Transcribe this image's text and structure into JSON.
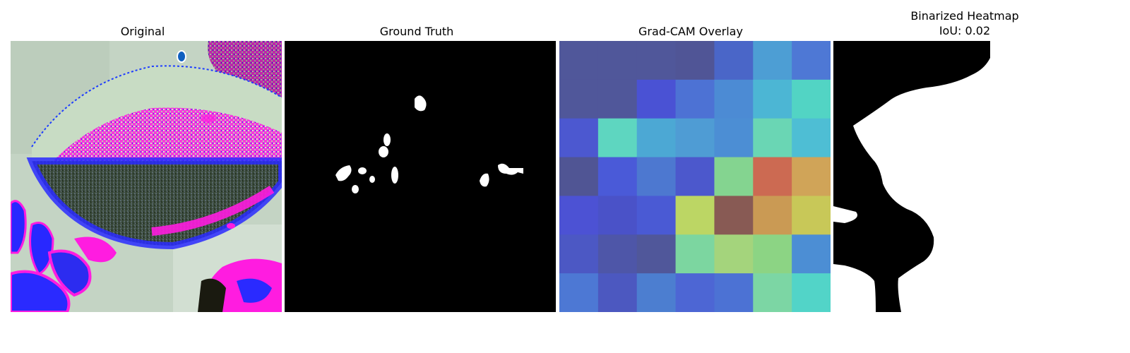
{
  "panels": [
    {
      "title": "Original"
    },
    {
      "title": "Ground Truth"
    },
    {
      "title": "Grad-CAM Overlay"
    },
    {
      "title": "Binarized Heatmap\nIoU: 0.02"
    }
  ],
  "gradcam": {
    "rows": 7,
    "cols": 7,
    "colors": [
      [
        "#50579a",
        "#50579a",
        "#50579a",
        "#505596",
        "#4a66c8",
        "#4d9ed4",
        "#4e78d5"
      ],
      [
        "#50579a",
        "#50579a",
        "#4a52d4",
        "#4d72d4",
        "#4c8bd4",
        "#4cb6d4",
        "#52d4c4"
      ],
      [
        "#4c58d0",
        "#5ed6c0",
        "#4ca8d4",
        "#4f9cd4",
        "#4c8ed4",
        "#6ad6b4",
        "#4ebed4"
      ],
      [
        "#505594",
        "#4a5ad8",
        "#4d78d0",
        "#4c58cc",
        "#84d490",
        "#cc6a52",
        "#d0a458"
      ],
      [
        "#4c52d4",
        "#4a52c8",
        "#4a5ad4",
        "#bcd664",
        "#885a54",
        "#ca9a54",
        "#c8c858"
      ],
      [
        "#4c58c4",
        "#4e56a8",
        "#50579a",
        "#7cd6a0",
        "#a4d47c",
        "#8cd484",
        "#4c8ed4"
      ],
      [
        "#4d78d4",
        "#4c58c0",
        "#4c7ed0",
        "#4d66d4",
        "#4c72d4",
        "#7cd6a4",
        "#52d4c8"
      ]
    ]
  }
}
